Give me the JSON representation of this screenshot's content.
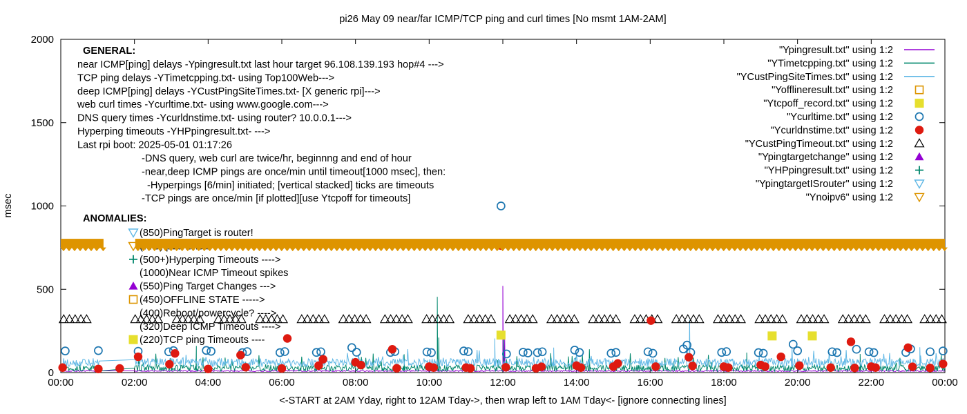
{
  "chart_data": {
    "type": "scatter",
    "title": "pi26 May 09  near/far ICMP/TCP ping and curl times [No msmt 1AM-2AM]",
    "xlabel": "<-START at 2AM Yday, right to 12AM Tday->, then wrap left to 1AM Tday<- [ignore connecting lines]",
    "ylabel": "msec",
    "xlim_hours": [
      0,
      24
    ],
    "ylim": [
      0,
      2000
    ],
    "x_ticks": [
      {
        "h": 0,
        "label": "00:00"
      },
      {
        "h": 2,
        "label": "02:00"
      },
      {
        "h": 4,
        "label": "04:00"
      },
      {
        "h": 6,
        "label": "06:00"
      },
      {
        "h": 8,
        "label": "08:00"
      },
      {
        "h": 10,
        "label": "10:00"
      },
      {
        "h": 12,
        "label": "12:00"
      },
      {
        "h": 14,
        "label": "14:00"
      },
      {
        "h": 16,
        "label": "16:00"
      },
      {
        "h": 18,
        "label": "18:00"
      },
      {
        "h": 20,
        "label": "20:00"
      },
      {
        "h": 22,
        "label": "22:00"
      },
      {
        "h": 24,
        "label": "00:00"
      }
    ],
    "y_ticks": [
      0,
      500,
      1000,
      1500,
      2000
    ],
    "no_measurement_gap_hours": [
      1.05,
      2.0
    ],
    "colors": {
      "purple": "#9400d3",
      "teal": "#00876c",
      "skyblue": "#5fb7e5",
      "orange": "#dd9500",
      "yellow": "#e6df2e",
      "blue": "#1c76b0",
      "red": "#de1a10",
      "black": "#000000",
      "band_orange": "#de9400"
    },
    "general": {
      "heading": "GENERAL:",
      "lines": [
        "near ICMP[ping] delays -Ypingresult.txt last hour target 96.108.139.193 hop#4 --->",
        "TCP ping delays -YTimetcpping.txt- using Top100Web--->",
        "deep ICMP[ping] delays -YCustPingSiteTimes.txt- [X generic rpi]--->",
        "web curl times -Ycurltime.txt- using www.google.com--->",
        "DNS query times -Ycurldnstime.txt- using router? 10.0.0.1--->",
        "Hyperping timeouts -YHPpingresult.txt- --->",
        "Last rpi boot: 2025-05-01 01:17:26"
      ],
      "notes": [
        "-DNS query, web curl are twice/hr, beginnng and end of hour",
        "-near,deep ICMP pings are once/min until timeout[1000 msec], then:",
        " -Hyperpings [6/min] initiated; [vertical stacked] ticks are timeouts",
        "-TCP pings are once/min [if plotted][use Ytcpoff for timeouts]"
      ]
    },
    "anomalies": {
      "heading": "ANOMALIES:",
      "items": [
        {
          "marker": "tri-down-open",
          "color": "skyblue",
          "text": "(850)PingTarget is router!"
        },
        {
          "marker": "tri-down-open",
          "color": "orange",
          "text": "(775)Ipv6 failed --->"
        },
        {
          "marker": "plus",
          "color": "teal",
          "text": "(500+)Hyperping Timeouts ---->"
        },
        {
          "marker": "none",
          "color": "black",
          "text": "(1000)Near ICMP Timeout spikes"
        },
        {
          "marker": "tri-up-filled",
          "color": "purple",
          "text": "(550)Ping Target Changes --->"
        },
        {
          "marker": "square-open",
          "color": "orange",
          "text": "(450)OFFLINE STATE ----->"
        },
        {
          "marker": "none",
          "color": "black",
          "text": "(400)Reboot/powercycle? ---->"
        },
        {
          "marker": "none",
          "color": "black",
          "text": "(320)Deep ICMP Timeouts ---->"
        },
        {
          "marker": "square-filled",
          "color": "yellow",
          "text": "(220)TCP ping Timeouts ----"
        }
      ]
    },
    "legend": [
      {
        "label": "\"Ypingresult.txt\" using 1:2",
        "type": "line",
        "color": "purple"
      },
      {
        "label": "\"YTimetcpping.txt\" using 1:2",
        "type": "line",
        "color": "teal"
      },
      {
        "label": "\"YCustPingSiteTimes.txt\" using 1:2",
        "type": "line",
        "color": "skyblue"
      },
      {
        "label": "\"Yofflineresult.txt\" using 1:2",
        "type": "marker",
        "shape": "square-open",
        "color": "orange"
      },
      {
        "label": "\"Ytcpoff_record.txt\" using 1:2",
        "type": "marker",
        "shape": "square-filled",
        "color": "yellow"
      },
      {
        "label": "\"Ycurltime.txt\" using 1:2",
        "type": "marker",
        "shape": "circle-open",
        "color": "blue"
      },
      {
        "label": "\"Ycurldnstime.txt\" using 1:2",
        "type": "marker",
        "shape": "circle-filled",
        "color": "red"
      },
      {
        "label": "\"YCustPingTimeout.txt\" using 1:2",
        "type": "marker",
        "shape": "tri-up-open",
        "color": "black"
      },
      {
        "label": "\"Ypingtargetchange\" using 1:2",
        "type": "marker",
        "shape": "tri-up-filled",
        "color": "purple"
      },
      {
        "label": "\"YHPpingresult.txt\" using 1:2",
        "type": "marker",
        "shape": "plus",
        "color": "teal"
      },
      {
        "label": "\"YpingtargetISrouter\" using 1:2",
        "type": "marker",
        "shape": "tri-down-open",
        "color": "skyblue"
      },
      {
        "label": "\"Ynoipv6\" using 1:2",
        "type": "marker",
        "shape": "tri-down-open",
        "color": "orange"
      }
    ],
    "series": {
      "noipv6_band": {
        "value_msec": 775,
        "ranges_hours": [
          [
            0,
            1.16
          ],
          [
            2.02,
            24
          ]
        ],
        "color": "band_orange"
      },
      "near_icmp_line": {
        "color": "purple",
        "baseline_msec": 6,
        "noise_amp": 7,
        "spikes": [
          [
            12.0,
            520
          ],
          [
            12.05,
            210
          ]
        ]
      },
      "tcp_ping_line": {
        "color": "teal",
        "baseline_msec": 8,
        "noise_amp": 38,
        "spikes": [
          [
            3.68,
            160
          ],
          [
            9.32,
            110
          ],
          [
            10.22,
            455
          ],
          [
            10.26,
            210
          ],
          [
            12.02,
            205
          ],
          [
            14.35,
            140
          ],
          [
            18.62,
            120
          ],
          [
            21.7,
            112
          ]
        ]
      },
      "deep_icmp_line": {
        "color": "skyblue",
        "baseline_msec": 34,
        "noise_amp": 52,
        "spikes": [
          [
            11.78,
            205
          ],
          [
            13.38,
            150
          ],
          [
            17.07,
            318
          ],
          [
            19.85,
            150
          ],
          [
            23.32,
            152
          ]
        ]
      },
      "curl_circles": {
        "color": "blue",
        "points": [
          [
            0.12,
            130
          ],
          [
            1.02,
            132
          ],
          [
            2.1,
            128
          ],
          [
            2.93,
            125
          ],
          [
            3.06,
            132
          ],
          [
            3.95,
            133
          ],
          [
            4.08,
            128
          ],
          [
            4.93,
            120
          ],
          [
            5.06,
            126
          ],
          [
            5.95,
            120
          ],
          [
            6.08,
            126
          ],
          [
            6.94,
            121
          ],
          [
            7.06,
            125
          ],
          [
            7.9,
            150
          ],
          [
            8.03,
            122
          ],
          [
            8.95,
            121
          ],
          [
            9.07,
            126
          ],
          [
            9.94,
            124
          ],
          [
            10.06,
            120
          ],
          [
            10.94,
            130
          ],
          [
            11.06,
            126
          ],
          [
            11.95,
            1000
          ],
          [
            12.1,
            112
          ],
          [
            12.55,
            122
          ],
          [
            12.68,
            118
          ],
          [
            12.94,
            120
          ],
          [
            13.07,
            125
          ],
          [
            13.95,
            135
          ],
          [
            14.08,
            121
          ],
          [
            14.94,
            116
          ],
          [
            15.07,
            121
          ],
          [
            15.94,
            125
          ],
          [
            16.07,
            116
          ],
          [
            16.9,
            142
          ],
          [
            17.0,
            165
          ],
          [
            17.1,
            121
          ],
          [
            17.94,
            121
          ],
          [
            18.07,
            126
          ],
          [
            18.94,
            120
          ],
          [
            19.07,
            116
          ],
          [
            19.88,
            170
          ],
          [
            20.0,
            131
          ],
          [
            20.94,
            125
          ],
          [
            21.07,
            120
          ],
          [
            21.6,
            140
          ],
          [
            21.94,
            125
          ],
          [
            22.07,
            120
          ],
          [
            22.94,
            121
          ],
          [
            23.07,
            142
          ],
          [
            23.6,
            125
          ],
          [
            23.95,
            130
          ]
        ]
      },
      "dns_red_dots": {
        "color": "red",
        "points": [
          [
            0.05,
            30
          ],
          [
            1.02,
            22
          ],
          [
            1.6,
            25
          ],
          [
            2.1,
            95
          ],
          [
            2.95,
            50
          ],
          [
            3.1,
            115
          ],
          [
            4.0,
            22
          ],
          [
            4.88,
            105
          ],
          [
            5.02,
            32
          ],
          [
            6.0,
            25
          ],
          [
            6.15,
            205
          ],
          [
            7.0,
            42
          ],
          [
            7.12,
            80
          ],
          [
            8.0,
            62
          ],
          [
            8.15,
            45
          ],
          [
            9.0,
            140
          ],
          [
            9.12,
            26
          ],
          [
            10.0,
            36
          ],
          [
            10.12,
            30
          ],
          [
            11.0,
            30
          ],
          [
            11.12,
            26
          ],
          [
            11.95,
            762
          ],
          [
            12.08,
            32
          ],
          [
            12.9,
            26
          ],
          [
            13.05,
            35
          ],
          [
            14.0,
            42
          ],
          [
            14.12,
            30
          ],
          [
            15.0,
            36
          ],
          [
            15.12,
            55
          ],
          [
            16.02,
            312
          ],
          [
            16.15,
            36
          ],
          [
            17.05,
            92
          ],
          [
            17.15,
            40
          ],
          [
            18.0,
            36
          ],
          [
            18.12,
            30
          ],
          [
            19.0,
            46
          ],
          [
            19.12,
            36
          ],
          [
            19.55,
            95
          ],
          [
            20.05,
            42
          ],
          [
            20.9,
            30
          ],
          [
            21.45,
            185
          ],
          [
            21.55,
            28
          ],
          [
            22.0,
            36
          ],
          [
            22.12,
            30
          ],
          [
            23.0,
            150
          ],
          [
            23.12,
            35
          ],
          [
            23.6,
            28
          ],
          [
            23.95,
            52
          ]
        ]
      },
      "deep_timeout_triangles": {
        "color": "black",
        "value_msec": 320,
        "cluster_starts_hours": [
          0.08,
          2.02,
          3.15,
          4.28,
          5.41,
          6.54,
          7.67,
          8.8,
          9.93,
          11.06,
          12.19,
          13.32,
          14.45,
          15.58,
          16.71,
          17.84,
          18.97,
          20.1,
          21.23,
          22.36,
          23.45
        ],
        "per_cluster": 5,
        "step_hours": 0.155
      },
      "tcpoff_squares": {
        "color": "yellow",
        "points": [
          [
            11.95,
            225
          ],
          [
            19.31,
            220
          ],
          [
            20.4,
            220
          ]
        ]
      }
    }
  }
}
